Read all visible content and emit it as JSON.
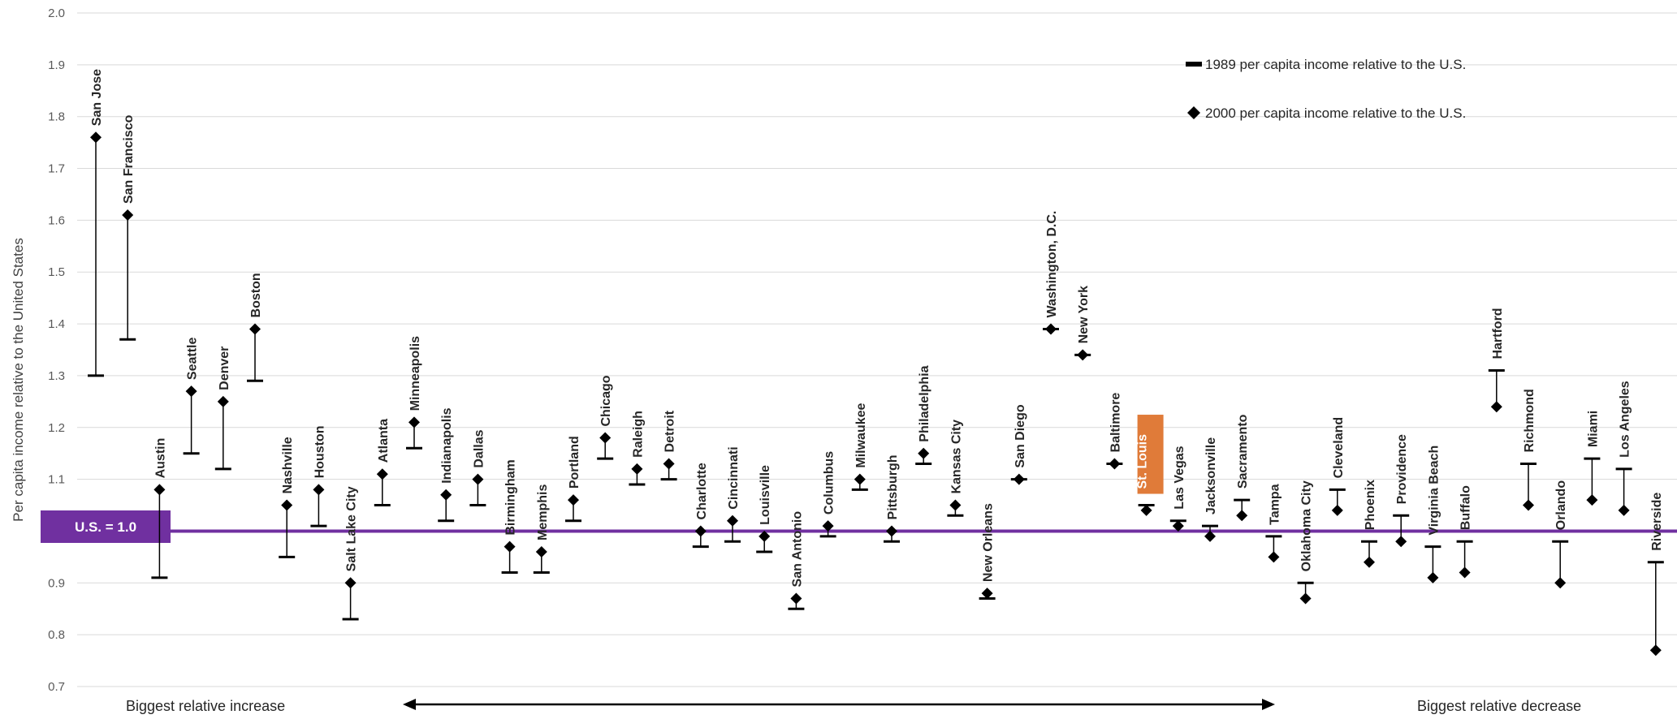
{
  "chart_data": {
    "type": "dot-range",
    "ylabel": "Per capita income relative to the United States",
    "ylim": [
      0.7,
      2.0
    ],
    "yticks": [
      "2.0",
      "1.9",
      "1.8",
      "1.7",
      "1.6",
      "1.5",
      "1.4",
      "1.3",
      "1.2",
      "1.1",
      "1.0",
      "0.9",
      "0.8",
      "0.7"
    ],
    "grid": true,
    "legend": {
      "placement": "top-right",
      "entries": [
        "1989 per capita income relative to the U.S.",
        "2000 per capita income relative to the U.S."
      ]
    },
    "reference_line": {
      "value": 1.0,
      "label": "U.S. = 1.0",
      "color": "#7030a0"
    },
    "highlight": {
      "city": "St. Louis",
      "color": "#e07b39"
    },
    "footer": {
      "left": "Biggest relative increase",
      "right": "Biggest relative decrease"
    },
    "categories": [
      "San Jose",
      "San Francisco",
      "Austin",
      "Seattle",
      "Denver",
      "Boston",
      "Nashville",
      "Houston",
      "Salt Lake City",
      "Atlanta",
      "Minneapolis",
      "Indianapolis",
      "Dallas",
      "Birmingham",
      "Memphis",
      "Portland",
      "Chicago",
      "Raleigh",
      "Detroit",
      "Charlotte",
      "Cincinnati",
      "Louisville",
      "San Antonio",
      "Columbus",
      "Milwaukee",
      "Pittsburgh",
      "Philadelphia",
      "Kansas City",
      "New Orleans",
      "San Diego",
      "Washington, D.C.",
      "New York",
      "Baltimore",
      "St. Louis",
      "Las Vegas",
      "Jacksonville",
      "Sacramento",
      "Tampa",
      "Oklahoma City",
      "Cleveland",
      "Phoenix",
      "Providence",
      "Virginia Beach",
      "Buffalo",
      "Hartford",
      "Richmond",
      "Orlando",
      "Miami",
      "Los Angeles",
      "Riverside"
    ],
    "series": [
      {
        "name": "1989 per capita income relative to the U.S.",
        "values": [
          1.3,
          1.37,
          0.91,
          1.15,
          1.12,
          1.29,
          0.95,
          1.01,
          0.83,
          1.05,
          1.16,
          1.02,
          1.05,
          0.92,
          0.92,
          1.02,
          1.14,
          1.09,
          1.1,
          0.97,
          0.98,
          0.96,
          0.85,
          0.99,
          1.08,
          0.98,
          1.13,
          1.03,
          0.87,
          1.1,
          1.39,
          1.34,
          1.13,
          1.05,
          1.02,
          1.01,
          1.06,
          0.99,
          0.9,
          1.08,
          0.98,
          1.03,
          0.97,
          0.98,
          1.31,
          1.13,
          0.98,
          1.14,
          1.12,
          0.94
        ]
      },
      {
        "name": "2000 per capita income relative to the U.S.",
        "values": [
          1.76,
          1.61,
          1.08,
          1.27,
          1.25,
          1.39,
          1.05,
          1.08,
          0.9,
          1.11,
          1.21,
          1.07,
          1.1,
          0.97,
          0.96,
          1.06,
          1.18,
          1.12,
          1.13,
          1.0,
          1.02,
          0.99,
          0.87,
          1.01,
          1.1,
          1.0,
          1.15,
          1.05,
          0.88,
          1.1,
          1.39,
          1.34,
          1.13,
          1.04,
          1.01,
          0.99,
          1.03,
          0.95,
          0.87,
          1.04,
          0.94,
          0.98,
          0.91,
          0.92,
          1.24,
          1.05,
          0.9,
          1.06,
          1.04,
          0.77
        ]
      }
    ]
  }
}
